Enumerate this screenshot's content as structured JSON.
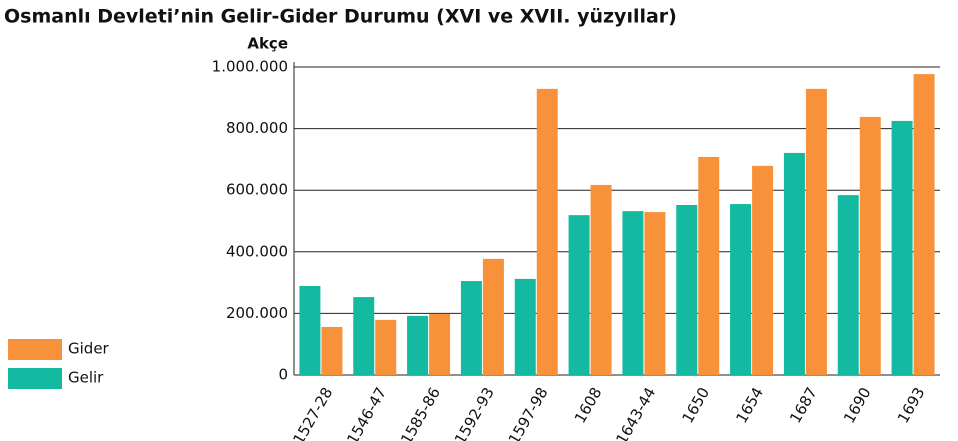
{
  "chart_data": {
    "type": "bar",
    "title": "Osmanlı Devleti’nin Gelir-Gider Durumu (XVI ve XVII. yüzyıllar)",
    "y_axis_label": "Akçe",
    "categories": [
      "1527-28",
      "1546-47",
      "1585-86",
      "1592-93",
      "1597-98",
      "1608",
      "1643-44",
      "1650",
      "1654",
      "1687",
      "1690",
      "1693"
    ],
    "series": [
      {
        "name": "Gelir",
        "color": "#13b9a1",
        "values": [
          289000,
          253000,
          192000,
          305000,
          312000,
          519000,
          532000,
          552000,
          555000,
          721000,
          584000,
          825000
        ]
      },
      {
        "name": "Gider",
        "color": "#f7923a",
        "values": [
          156000,
          179000,
          198000,
          377000,
          929000,
          617000,
          529000,
          708000,
          679000,
          929000,
          838000,
          977000
        ]
      }
    ],
    "ylim": [
      0,
      1000000
    ],
    "yticks": [
      0,
      {
        "value": 200000,
        "label": "200.000"
      },
      {
        "value": 400000,
        "label": "400.000"
      },
      {
        "value": 600000,
        "label": "600.000"
      },
      {
        "value": 800000,
        "label": "800.000"
      },
      {
        "value": 1000000,
        "label": "1.000.000"
      }
    ],
    "grid": true,
    "legend_position": "bottom-left"
  }
}
